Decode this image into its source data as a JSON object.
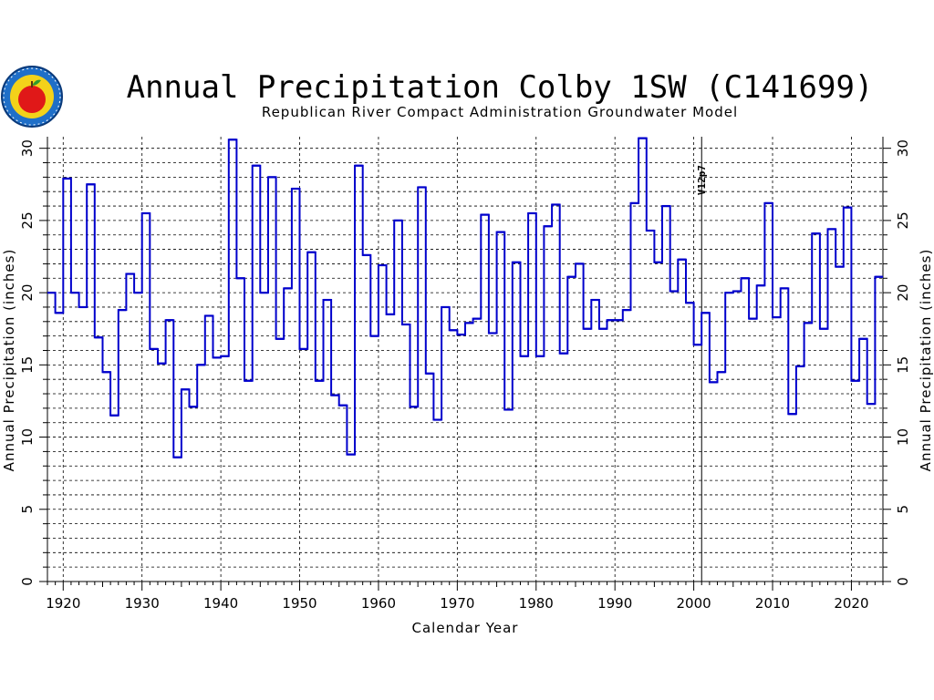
{
  "chart_data": {
    "type": "line",
    "step": true,
    "title": "Annual Precipitation Colby 1SW (C141699)",
    "subtitle": "Republican River Compact Administration Groundwater Model",
    "xlabel": "Calendar Year",
    "ylabel": "Annual Precipitation (inches)",
    "xlim": [
      1918,
      2024
    ],
    "ylim": [
      0,
      30.8
    ],
    "x_ticks": [
      1920,
      1930,
      1940,
      1950,
      1960,
      1970,
      1980,
      1990,
      2000,
      2010,
      2020
    ],
    "y_ticks": [
      0,
      5,
      10,
      15,
      20,
      25,
      30
    ],
    "grid": true,
    "annotation": {
      "text": "V12p7",
      "x": 2001
    },
    "series": [
      {
        "color": "#0000cc",
        "x": [
          1918,
          1919,
          1920,
          1921,
          1922,
          1923,
          1924,
          1925,
          1926,
          1927,
          1928,
          1929,
          1930,
          1931,
          1932,
          1933,
          1934,
          1935,
          1936,
          1937,
          1938,
          1939,
          1940,
          1941,
          1942,
          1943,
          1944,
          1945,
          1946,
          1947,
          1948,
          1949,
          1950,
          1951,
          1952,
          1953,
          1954,
          1955,
          1956,
          1957,
          1958,
          1959,
          1960,
          1961,
          1962,
          1963,
          1964,
          1965,
          1966,
          1967,
          1968,
          1969,
          1970,
          1971,
          1972,
          1973,
          1974,
          1975,
          1976,
          1977,
          1978,
          1979,
          1980,
          1981,
          1982,
          1983,
          1984,
          1985,
          1986,
          1987,
          1988,
          1989,
          1990,
          1991,
          1992,
          1993,
          1994,
          1995,
          1996,
          1997,
          1998,
          1999,
          2000,
          2001,
          2002,
          2003,
          2004,
          2005,
          2006,
          2007,
          2008,
          2009,
          2010,
          2011,
          2012,
          2013,
          2014,
          2015,
          2016,
          2017,
          2018,
          2019,
          2020,
          2021,
          2022,
          2023
        ],
        "values": [
          20.0,
          18.6,
          27.9,
          20.0,
          19.0,
          27.5,
          16.9,
          14.5,
          11.5,
          18.8,
          21.3,
          20.0,
          25.5,
          16.1,
          15.1,
          18.1,
          8.6,
          13.3,
          12.1,
          15.0,
          18.4,
          15.5,
          15.6,
          30.6,
          21.0,
          13.9,
          28.8,
          20.0,
          28.0,
          16.8,
          20.3,
          27.2,
          16.1,
          22.8,
          13.9,
          19.5,
          12.9,
          12.2,
          8.8,
          28.8,
          22.6,
          17.0,
          21.9,
          18.5,
          25.0,
          17.8,
          12.1,
          27.3,
          14.4,
          11.2,
          19.0,
          17.4,
          17.1,
          17.9,
          18.2,
          25.4,
          17.2,
          24.2,
          11.9,
          22.1,
          15.6,
          25.5,
          15.6,
          24.6,
          26.1,
          15.8,
          21.1,
          22.0,
          17.5,
          19.5,
          17.5,
          18.1,
          18.1,
          18.8,
          26.2,
          30.7,
          24.3,
          22.1,
          26.0,
          20.1,
          22.3,
          19.3,
          16.4,
          18.6,
          13.8,
          14.5,
          20.0,
          20.1,
          21.0,
          18.2,
          20.5,
          26.2,
          18.3,
          20.3,
          11.6,
          14.9,
          17.9,
          24.1,
          17.5,
          24.4,
          21.8,
          25.9,
          13.9,
          16.8,
          12.3,
          21.1
        ]
      }
    ]
  },
  "colors": {
    "series": "#0000cc",
    "grid": "#000000",
    "axis": "#000000"
  },
  "logo": {
    "icon": "apple-seal-icon"
  }
}
